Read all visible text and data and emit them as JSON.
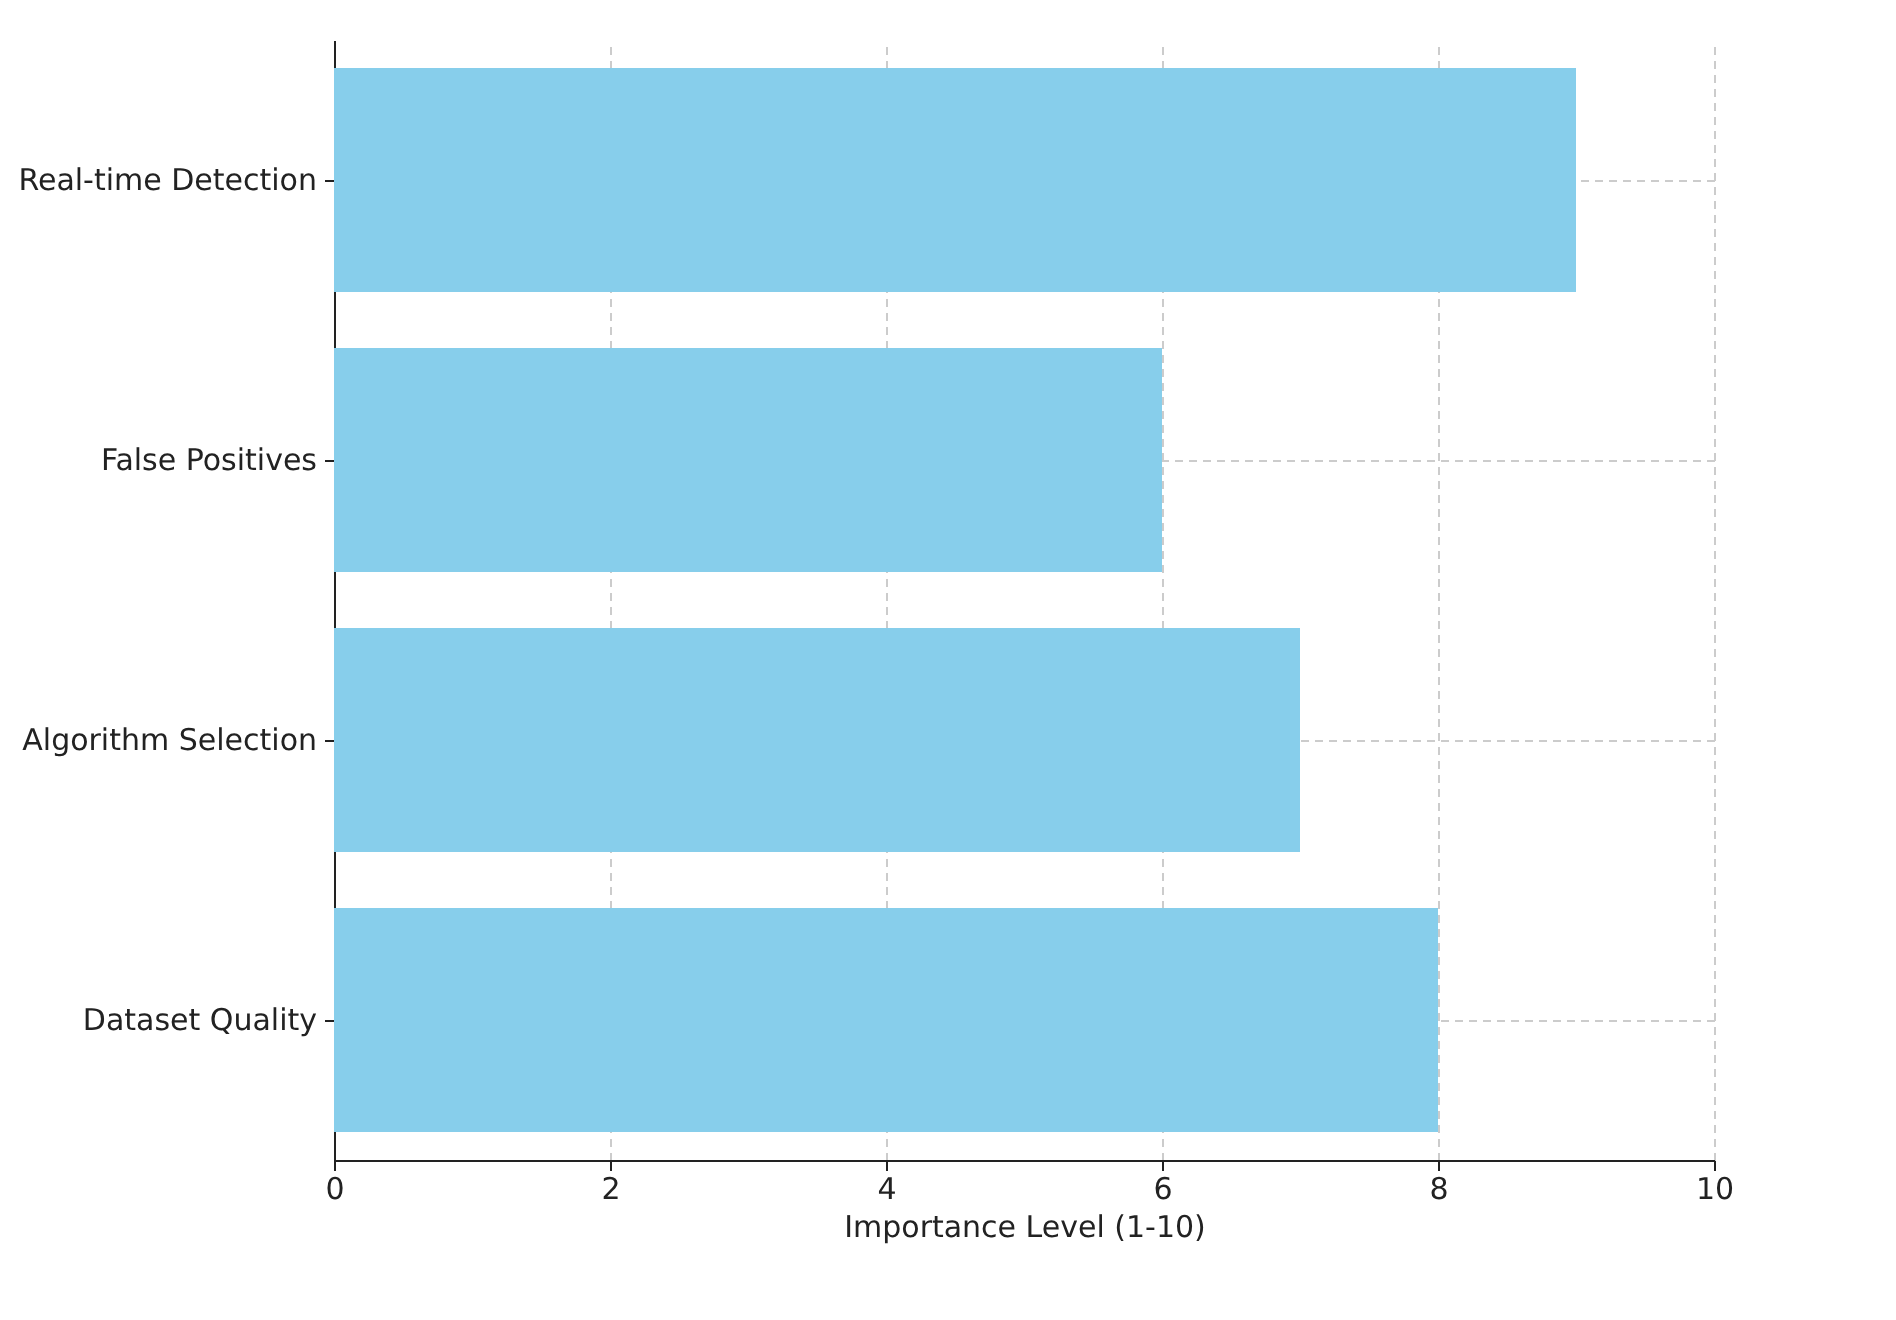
{
  "chart_data": {
    "type": "bar",
    "orientation": "horizontal",
    "xlabel": "Importance Level (1-10)",
    "categories": [
      "Real-time Detection",
      "False Positives",
      "Algorithm Selection",
      "Dataset Quality"
    ],
    "values": [
      9,
      6,
      7,
      8
    ],
    "color": "#87ceeb",
    "xlim": [
      0,
      10
    ],
    "xticks": [
      0,
      2,
      4,
      6,
      8,
      10
    ],
    "grid": true
  }
}
